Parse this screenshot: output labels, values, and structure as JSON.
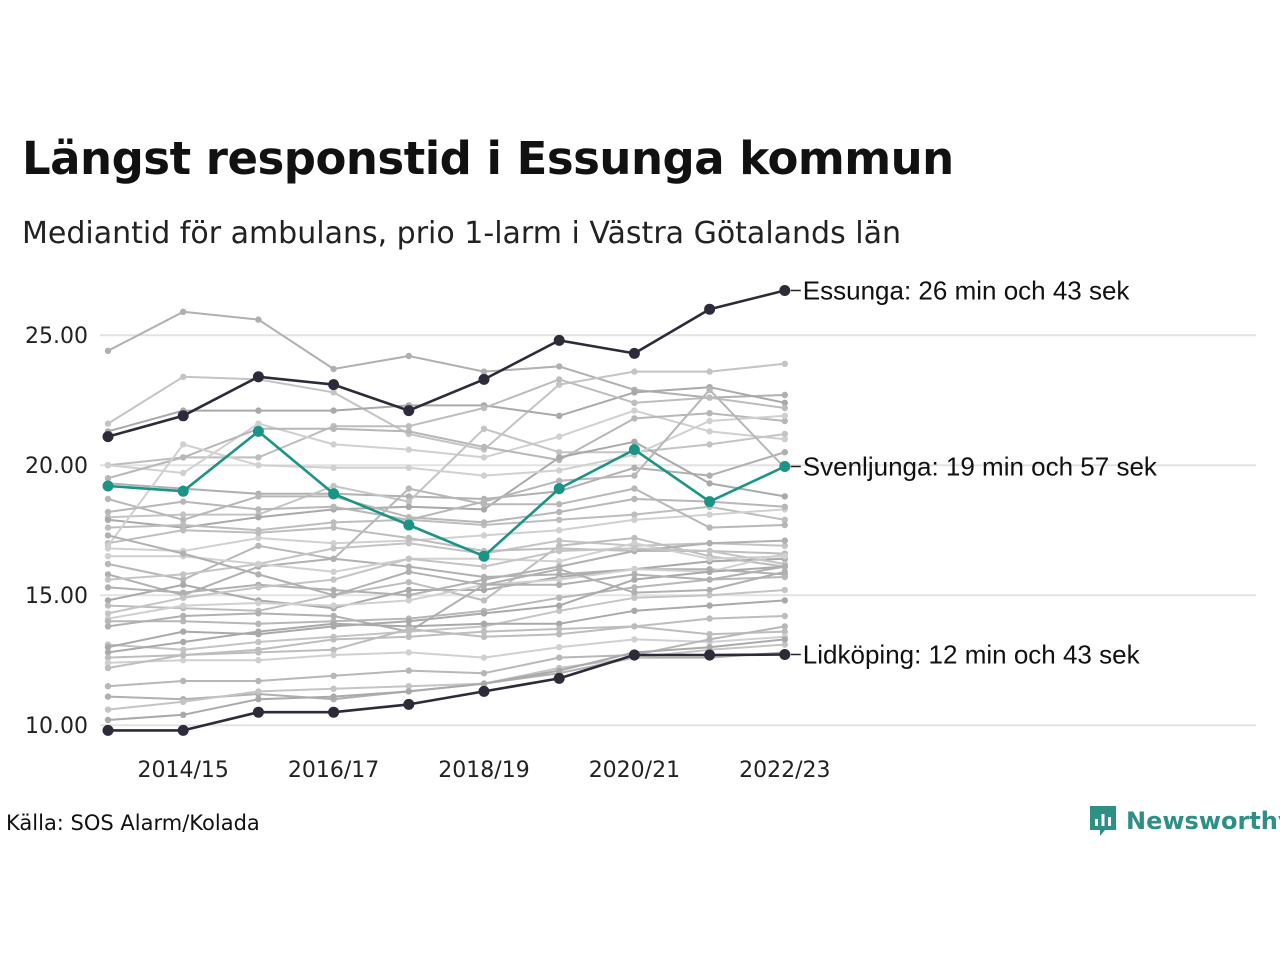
{
  "header": {
    "title": "Längst responstid i Essunga kommun",
    "subtitle": "Mediantid för ambulans, prio 1-larm i Västra Götalands län"
  },
  "footer": {
    "source": "Källa: SOS Alarm/Kolada",
    "brand": "Newsworthy"
  },
  "colors": {
    "highlight_dark": "#2b2b3a",
    "highlight_teal": "#1a9484",
    "background_lines": "#b4b4b4",
    "grid": "#e2e2e2",
    "brand": "#2e8f85"
  },
  "chart_data": {
    "type": "line",
    "x": [
      "2013/14",
      "2014/15",
      "2015/16",
      "2016/17",
      "2017/18",
      "2018/19",
      "2019/20",
      "2020/21",
      "2021/22",
      "2022/23"
    ],
    "x_tick_labels": [
      "2014/15",
      "2016/17",
      "2018/19",
      "2020/21",
      "2022/23"
    ],
    "y_tick_labels": [
      "10.00",
      "15.00",
      "20.00",
      "25.00"
    ],
    "ylim": [
      9.7,
      27.2
    ],
    "grid": "horizontal",
    "highlighted": [
      {
        "label": "Essunga: 26 min och 43 sek",
        "color": "#2b2b3a",
        "values": [
          21.1,
          21.9,
          23.4,
          23.1,
          22.1,
          23.3,
          24.8,
          24.3,
          26.0,
          26.72
        ]
      },
      {
        "label": "Svenljunga: 19 min och 57 sek",
        "color": "#1a9484",
        "values": [
          19.2,
          19.0,
          21.3,
          18.9,
          17.7,
          16.5,
          19.1,
          20.6,
          18.6,
          19.95
        ]
      },
      {
        "label": "Lidköping: 12 min och 43 sek",
        "color": "#2b2b3a",
        "values": [
          9.8,
          9.8,
          10.5,
          10.5,
          10.8,
          11.3,
          11.8,
          12.7,
          12.7,
          12.72
        ]
      }
    ],
    "background_series": [
      [
        24.4,
        25.9,
        25.6,
        23.7,
        24.2,
        23.6,
        23.8,
        22.9,
        22.6,
        22.7
      ],
      [
        21.6,
        23.4,
        23.3,
        22.8,
        21.2,
        20.6,
        23.1,
        23.6,
        23.6,
        23.9
      ],
      [
        21.3,
        22.1,
        22.1,
        22.1,
        22.3,
        22.3,
        21.9,
        22.8,
        23.0,
        22.4
      ],
      [
        20.0,
        20.3,
        20.3,
        21.5,
        21.5,
        22.2,
        23.3,
        22.4,
        22.6,
        22.2
      ],
      [
        20.0,
        19.7,
        21.6,
        20.8,
        20.6,
        20.3,
        21.1,
        22.1,
        21.3,
        21.0
      ],
      [
        19.5,
        20.3,
        21.4,
        21.4,
        21.3,
        20.7,
        20.2,
        21.8,
        22.0,
        21.7
      ],
      [
        19.3,
        19.1,
        18.9,
        18.9,
        18.8,
        18.7,
        19.0,
        19.9,
        19.6,
        20.5
      ],
      [
        18.0,
        18.1,
        18.1,
        19.2,
        18.6,
        21.4,
        20.5,
        20.5,
        20.8,
        21.2
      ],
      [
        17.9,
        17.6,
        18.0,
        18.3,
        18.4,
        18.3,
        20.3,
        20.9,
        19.3,
        18.8
      ],
      [
        17.6,
        17.7,
        17.5,
        17.8,
        17.9,
        17.7,
        17.9,
        18.1,
        18.4,
        17.9
      ],
      [
        16.8,
        16.7,
        17.2,
        17.0,
        17.1,
        17.3,
        17.5,
        17.9,
        18.1,
        18.3
      ],
      [
        16.2,
        15.6,
        16.9,
        16.4,
        19.1,
        18.5,
        18.5,
        19.1,
        17.6,
        17.7
      ],
      [
        15.8,
        15.0,
        16.1,
        16.4,
        16.1,
        15.7,
        15.8,
        16.0,
        16.0,
        15.8
      ],
      [
        15.6,
        15.8,
        16.2,
        16.8,
        17.0,
        16.6,
        17.1,
        16.9,
        17.0,
        16.9
      ],
      [
        14.8,
        15.4,
        14.8,
        14.5,
        15.2,
        15.2,
        15.7,
        16.0,
        16.3,
        16.4
      ],
      [
        14.6,
        14.5,
        14.4,
        15.0,
        15.5,
        14.8,
        16.9,
        17.2,
        16.5,
        16.1
      ],
      [
        14.1,
        14.6,
        14.7,
        14.6,
        14.8,
        15.4,
        15.6,
        16.0,
        15.9,
        16.6
      ],
      [
        14.0,
        14.0,
        13.9,
        14.0,
        14.1,
        14.4,
        14.9,
        15.3,
        15.6,
        15.7
      ],
      [
        13.8,
        14.2,
        14.3,
        14.2,
        13.6,
        15.4,
        16.0,
        15.1,
        15.2,
        15.9
      ],
      [
        13.1,
        12.9,
        13.2,
        13.4,
        13.6,
        13.8,
        14.4,
        14.9,
        15.0,
        15.2
      ],
      [
        12.8,
        13.2,
        13.6,
        13.9,
        13.8,
        13.9,
        13.9,
        14.4,
        14.6,
        14.8
      ],
      [
        12.6,
        12.7,
        12.8,
        12.9,
        13.7,
        13.4,
        13.5,
        13.8,
        13.5,
        13.6
      ],
      [
        12.4,
        12.5,
        12.5,
        12.7,
        12.8,
        12.6,
        13.0,
        13.3,
        13.2,
        13.4
      ],
      [
        11.5,
        11.7,
        11.7,
        11.9,
        12.1,
        12.0,
        12.6,
        12.7,
        13.3,
        13.8
      ],
      [
        11.1,
        11.0,
        11.2,
        11.0,
        11.3,
        11.6,
        12.0,
        12.6,
        12.6,
        12.8
      ],
      [
        10.6,
        10.9,
        11.3,
        11.4,
        11.5,
        11.6,
        12.2,
        12.6,
        12.9,
        13.1
      ],
      [
        10.2,
        10.4,
        11.0,
        11.1,
        11.3,
        11.6,
        12.1,
        12.8,
        13.0,
        13.3
      ],
      [
        17.0,
        17.5,
        17.4,
        17.6,
        17.2,
        16.7,
        16.8,
        16.7,
        16.7,
        16.6
      ],
      [
        16.5,
        16.5,
        16.2,
        15.9,
        16.4,
        16.4,
        16.3,
        17.0,
        16.4,
        16.5
      ],
      [
        18.7,
        17.9,
        18.8,
        18.8,
        18.0,
        17.8,
        18.2,
        18.7,
        18.6,
        18.4
      ],
      [
        15.3,
        15.1,
        15.4,
        15.2,
        15.0,
        15.6,
        16.1,
        16.7,
        17.0,
        17.1
      ],
      [
        14.3,
        14.9,
        15.3,
        15.6,
        16.4,
        16.1,
        16.7,
        16.8,
        16.7,
        16.2
      ],
      [
        13.0,
        13.6,
        13.5,
        13.8,
        14.0,
        14.3,
        14.6,
        15.6,
        15.9,
        16.1
      ],
      [
        12.2,
        12.7,
        12.9,
        13.3,
        13.4,
        13.6,
        13.7,
        13.8,
        14.1,
        14.2
      ],
      [
        16.9,
        20.8,
        20.0,
        19.9,
        19.9,
        19.6,
        19.8,
        20.4,
        21.7,
        21.9
      ],
      [
        18.2,
        18.6,
        18.3,
        18.4,
        17.9,
        18.6,
        19.4,
        19.6,
        22.9,
        19.9
      ],
      [
        17.3,
        16.6,
        15.8,
        15.0,
        15.9,
        15.4,
        15.4,
        15.8,
        15.6,
        16.1
      ]
    ]
  }
}
